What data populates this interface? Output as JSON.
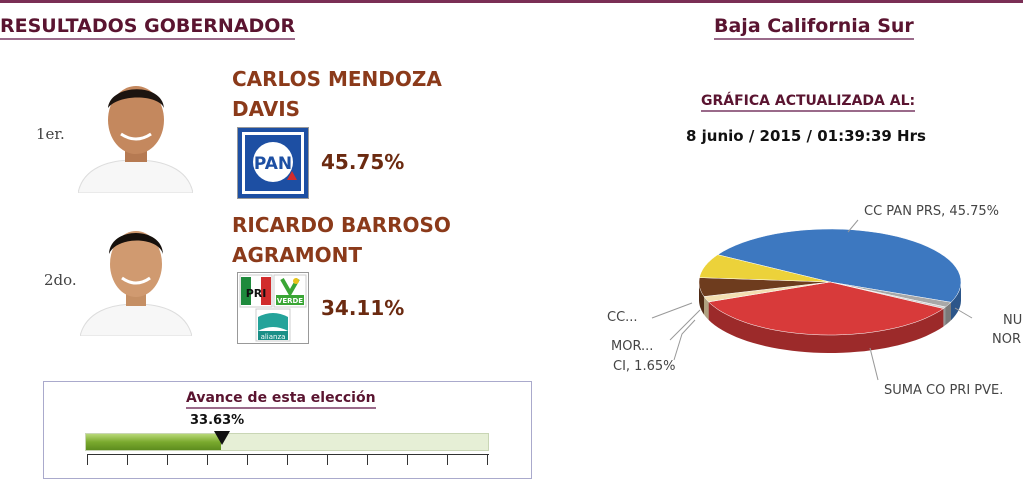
{
  "header": {
    "title_left": "RESULTADOS GOBERNADOR",
    "title_right": "Baja California Sur"
  },
  "candidates": [
    {
      "rank": "1er.",
      "name_line1": "CARLOS MENDOZA",
      "name_line2": "DAVIS",
      "party_logo": "pan-logo",
      "percent": "45.75%"
    },
    {
      "rank": "2do.",
      "name_line1": "RICARDO BARROSO",
      "name_line2": "AGRAMONT",
      "party_logo": "pri-verde-nueva-alianza-logo",
      "percent": "34.11%"
    }
  ],
  "update": {
    "label": "GRÁFICA ACTUALIZADA AL:",
    "timestamp": "8 junio / 2015 / 01:39:39 Hrs"
  },
  "chart_data": {
    "type": "pie",
    "slices": [
      {
        "label": "CC PAN PRS, 45.75%",
        "value": 45.75,
        "color": "#3d78c0"
      },
      {
        "label": "NU",
        "value": 1.5,
        "color": "#a8a8a8"
      },
      {
        "label": "NOR",
        "value": 0.5,
        "color": "#cfcfcf"
      },
      {
        "label": "SUMA CO PRI PVE.",
        "value": 34.11,
        "color": "#d83a3a"
      },
      {
        "label": "CI, 1.65%",
        "value": 1.65,
        "color": "#f3dfb2"
      },
      {
        "label": "MOR...",
        "value": 5.5,
        "color": "#6e3c1e"
      },
      {
        "label": "CC...",
        "value": 7.0,
        "color": "#ecd23a"
      }
    ]
  },
  "avance": {
    "title": "Avance de esta elección",
    "percent_label": "33.63%",
    "progress": 0.3363
  },
  "colors": {
    "accent": "#7a2e55",
    "candidate_name": "#8b3a1a",
    "progress_green": "#7aaa2e"
  }
}
